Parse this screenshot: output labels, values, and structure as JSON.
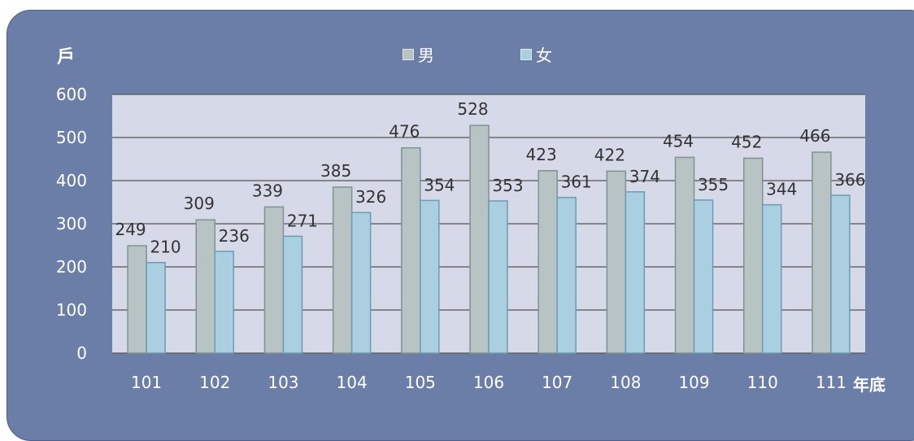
{
  "chart_data": {
    "type": "bar",
    "title": "",
    "ylabel": "戶",
    "xlabel": "年底",
    "ylim": [
      0,
      600
    ],
    "yticks": [
      0,
      100,
      200,
      300,
      400,
      500,
      600
    ],
    "categories": [
      "101",
      "102",
      "103",
      "104",
      "105",
      "106",
      "107",
      "108",
      "109",
      "110",
      "111"
    ],
    "series": [
      {
        "name": "男",
        "color": "#b8c4c4",
        "values": [
          249,
          309,
          339,
          385,
          476,
          528,
          423,
          422,
          454,
          452,
          466
        ]
      },
      {
        "name": "女",
        "color": "#a9cfe0",
        "values": [
          210,
          236,
          271,
          326,
          354,
          353,
          361,
          374,
          355,
          344,
          366
        ]
      }
    ],
    "legend_position": "top-center",
    "grid": true
  },
  "colors": {
    "panel_background": "#6b7ea8",
    "plot_background": "#d6dae8",
    "gridline": "#555555",
    "axis_text": "#ffffff",
    "data_label_text": "#333333"
  }
}
